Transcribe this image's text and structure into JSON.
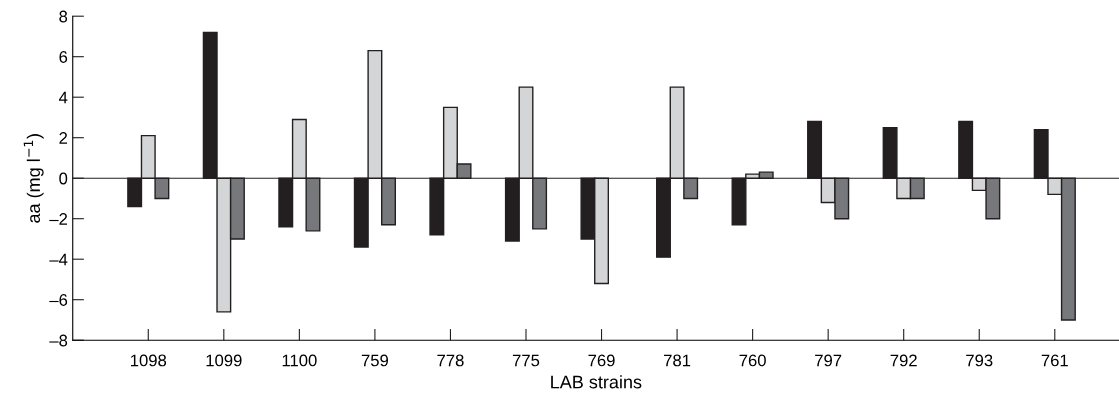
{
  "chart_data": {
    "type": "bar",
    "xlabel": "LAB strains",
    "ylabel": "aa (mg l$^{−1}$)",
    "categories": [
      "1098",
      "1099",
      "1100",
      "759",
      "778",
      "775",
      "769",
      "781",
      "760",
      "797",
      "792",
      "793",
      "761"
    ],
    "series": [
      {
        "color": "#231f20",
        "values": [
          -1.4,
          7.2,
          -2.4,
          -3.4,
          -2.8,
          -3.1,
          -3.0,
          -3.9,
          -2.3,
          2.8,
          2.5,
          2.8,
          2.4
        ]
      },
      {
        "color": "#d4d5d7",
        "values": [
          2.1,
          -6.6,
          2.9,
          6.3,
          3.5,
          4.5,
          -5.2,
          4.5,
          0.2,
          -1.2,
          -1.0,
          -0.6,
          -0.8
        ]
      },
      {
        "color": "#77787b",
        "values": [
          -1.0,
          -3.0,
          -2.6,
          -2.3,
          0.7,
          -2.5,
          null,
          -1.0,
          0.3,
          -2.0,
          -1.0,
          -2.0,
          -7.0
        ]
      }
    ],
    "ylim": [
      -8,
      8
    ],
    "yticks": [
      {
        "value": -8,
        "label": "–8"
      },
      {
        "value": -6,
        "label": "–6"
      },
      {
        "value": -4,
        "label": "–4"
      },
      {
        "value": -2,
        "label": "–2"
      },
      0,
      2,
      4,
      6,
      8
    ],
    "ref_lines": [
      {
        "axis": "y",
        "value": 0,
        "color": "#231f20",
        "line_style": "solid"
      }
    ],
    "grid": false,
    "legend": false
  }
}
